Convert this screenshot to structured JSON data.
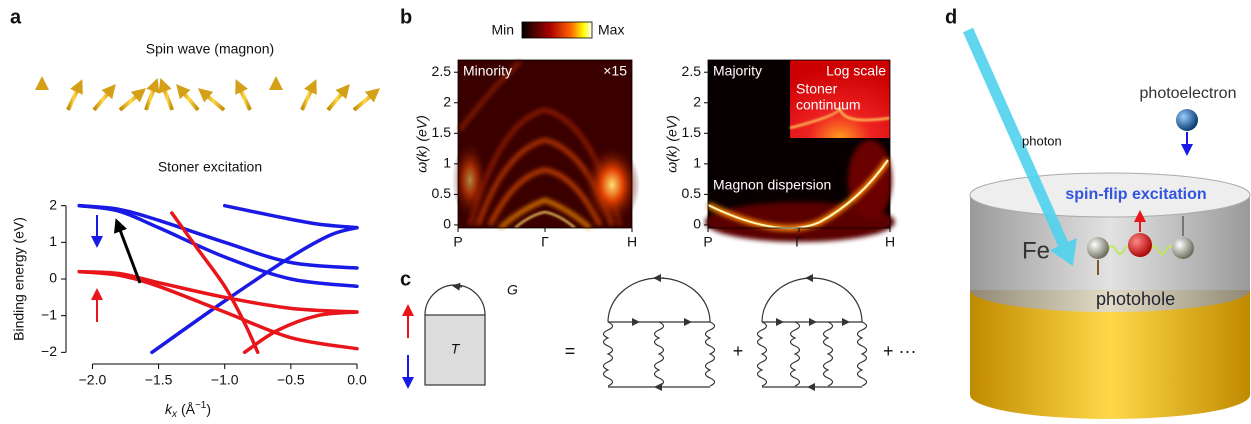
{
  "figure": {
    "panel_labels": [
      "a",
      "b",
      "c",
      "d"
    ],
    "a": {
      "title_top": "Spin wave (magnon)",
      "title_bottom": "Stoner excitation"
    },
    "b": {
      "colorbar_min": "Min",
      "colorbar_max": "Max"
    },
    "c": {
      "g_label": "G",
      "t_label": "T",
      "equals": "=",
      "plus": "+",
      "plus_more": "+ ···"
    },
    "d": {
      "photon": "photon",
      "photoelectron": "photoelectron",
      "excitation": "spin-flip excitation",
      "material": "Fe",
      "photohole": "photohole"
    }
  },
  "chart_data": [
    {
      "type": "line",
      "y_label": "Binding energy (eV)",
      "x_label": {
        "symbol": "k",
        "subscript": "x",
        "unit": "(Å",
        "superscript": "−1",
        "close": ")"
      },
      "xlim": [
        -2.2,
        0
      ],
      "ylim": [
        -2.1,
        2.1
      ],
      "xticks": [
        {
          "value": -2,
          "label": "−2.0"
        },
        {
          "value": -1.5,
          "label": "−1.5"
        },
        {
          "value": -1,
          "label": "−1.0"
        },
        {
          "value": -0.5,
          "label": "−0.5"
        },
        {
          "value": 0,
          "label": "0.0"
        }
      ],
      "yticks": [
        2,
        1,
        0,
        {
          "value": -1,
          "label": "−1"
        },
        {
          "value": -2,
          "label": "−2"
        }
      ],
      "series": [
        {
          "color": "#1a1ae6",
          "x": [
            -2.1,
            -1.8,
            -1.5,
            -1.0,
            -0.5,
            0
          ],
          "values": [
            2.0,
            1.85,
            1.4,
            0.6,
            0.0,
            -0.2
          ]
        },
        {
          "color": "#1a1ae6",
          "x": [
            -2.1,
            -1.8,
            -1.5,
            -1.0,
            -0.5,
            0
          ],
          "values": [
            2.0,
            1.9,
            1.6,
            1.0,
            0.45,
            0.3
          ]
        },
        {
          "color": "#1a1ae6",
          "x": [
            -1.0,
            -0.6,
            -0.3,
            0
          ],
          "values": [
            2.0,
            1.7,
            1.5,
            1.4
          ]
        },
        {
          "color": "#1a1ae6",
          "x": [
            -1.55,
            -1.0,
            -0.5,
            -0.2,
            0
          ],
          "values": [
            -2.0,
            -0.6,
            0.6,
            1.2,
            1.4
          ]
        },
        {
          "color": "#e8151b",
          "x": [
            -2.1,
            -1.8,
            -1.5,
            -1.0,
            -0.5,
            0
          ],
          "values": [
            0.2,
            0.1,
            -0.2,
            -0.9,
            -1.6,
            -1.9
          ]
        },
        {
          "color": "#e8151b",
          "x": [
            -2.1,
            -1.8,
            -1.5,
            -1.0,
            -0.5,
            0
          ],
          "values": [
            0.2,
            0.15,
            -0.1,
            -0.5,
            -0.8,
            -0.9
          ]
        },
        {
          "color": "#e8151b",
          "x": [
            -1.4,
            -1.2,
            -1.0,
            -0.85,
            -0.75
          ],
          "values": [
            1.8,
            0.8,
            -0.2,
            -1.2,
            -2.0
          ]
        },
        {
          "color": "#e8151b",
          "x": [
            -0.85,
            -0.6,
            -0.3,
            0
          ],
          "values": [
            -2.0,
            -1.4,
            -1.0,
            -0.9
          ]
        }
      ]
    },
    {
      "type": "heatmap",
      "y_label": "ω(k) (eV)",
      "categories": [
        "P",
        "Γ",
        "H"
      ],
      "ylim": [
        -0.05,
        2.7
      ],
      "yticks": [
        0,
        0.5,
        1,
        1.5,
        2,
        2.5
      ],
      "annotations": [
        "Minority",
        "×15"
      ]
    },
    {
      "type": "heatmap",
      "y_label": "ω(k) (eV)",
      "categories": [
        "P",
        "Γ",
        "H"
      ],
      "ylim": [
        -0.05,
        2.7
      ],
      "yticks": [
        0,
        0.5,
        1,
        1.5,
        2,
        2.5
      ],
      "annotations": [
        "Majority",
        "Log scale",
        "Stoner",
        "continuum",
        "Magnon dispersion"
      ]
    }
  ]
}
